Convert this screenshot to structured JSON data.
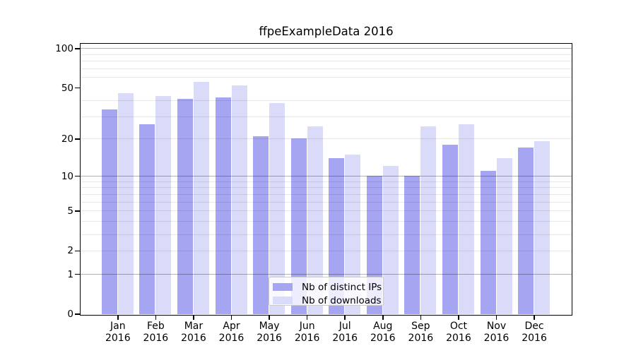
{
  "chart_data": {
    "type": "bar",
    "title": "ffpeExampleData 2016",
    "categories": [
      "Jan",
      "Feb",
      "Mar",
      "Apr",
      "May",
      "Jun",
      "Jul",
      "Aug",
      "Sep",
      "Oct",
      "Nov",
      "Dec"
    ],
    "x_year": "2016",
    "series": [
      {
        "name": "Nb of distinct IPs",
        "color": "#a5a5f2",
        "values": [
          34,
          26,
          41,
          42,
          21,
          20,
          14,
          10,
          10,
          18,
          11,
          17
        ]
      },
      {
        "name": "Nb of downloads",
        "color": "#dadaf9",
        "values": [
          45,
          43,
          55,
          52,
          38,
          25,
          15,
          12,
          25,
          26,
          14,
          19
        ]
      }
    ],
    "yscale": "log1p",
    "ylim": [
      0,
      110
    ],
    "yticks": [
      0,
      1,
      2,
      5,
      10,
      20,
      50,
      100
    ],
    "major_gridlines": [
      1,
      10,
      100
    ],
    "minor_gridlines": [
      2,
      3,
      4,
      5,
      6,
      7,
      8,
      9,
      20,
      30,
      40,
      60,
      70,
      80,
      90
    ],
    "grid": true,
    "legend_position": "lower center",
    "axis_color": "#000000",
    "background": "#ffffff"
  }
}
